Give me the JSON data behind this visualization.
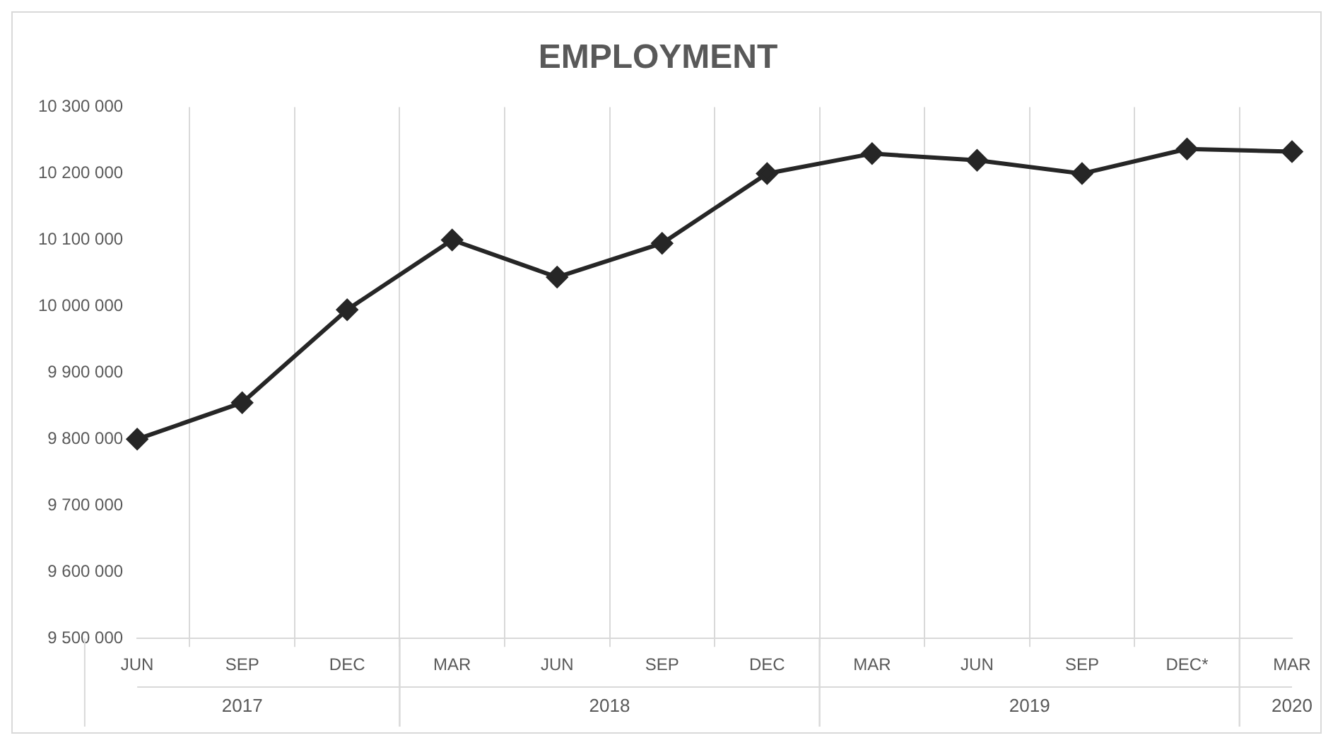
{
  "chart_data": {
    "type": "line",
    "title": "EMPLOYMENT",
    "categories": [
      "JUN",
      "SEP",
      "DEC",
      "MAR",
      "JUN",
      "SEP",
      "DEC",
      "MAR",
      "JUN",
      "SEP",
      "DEC*",
      "MAR"
    ],
    "series": [
      {
        "color": "#262626",
        "values": [
          9800000,
          9855000,
          9995000,
          10100000,
          10044000,
          10095000,
          10200000,
          10230000,
          10220000,
          10200000,
          10237000,
          10233000
        ]
      }
    ],
    "ylim": [
      9500000,
      10300000
    ],
    "yticks": [
      {
        "value": 9500000,
        "label": "9 500 000"
      },
      {
        "value": 9600000,
        "label": "9 600 000"
      },
      {
        "value": 9700000,
        "label": "9 700 000"
      },
      {
        "value": 9800000,
        "label": "9 800 000"
      },
      {
        "value": 9900000,
        "label": "9 900 000"
      },
      {
        "value": 10000000,
        "label": "10 000 000"
      },
      {
        "value": 10100000,
        "label": "10 100 000"
      },
      {
        "value": 10200000,
        "label": "10 200 000"
      },
      {
        "value": 10300000,
        "label": "10 300 000"
      }
    ],
    "annotations": [
      "2017",
      "2018",
      "2019",
      "2020"
    ],
    "grid": "x",
    "legend": false,
    "marker": "diamond",
    "line_style": "solid"
  }
}
